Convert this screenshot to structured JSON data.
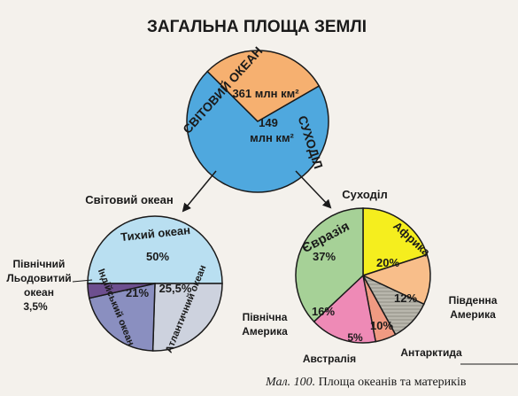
{
  "title": "ЗАГАЛЬНА ПЛОЩА ЗЕМЛІ",
  "caption": {
    "prefix": "Мал. 100.",
    "text": "Площа океанів та материків"
  },
  "chart_data": [
    {
      "type": "pie",
      "title": "ЗАГАЛЬНА ПЛОЩА ЗЕМЛІ",
      "slices": [
        {
          "label": "СВІТОВИЙ ОКЕАН",
          "value": 361,
          "value_label": "361 млн км²",
          "color": "#4fa8de"
        },
        {
          "label": "СУХОДІЛ",
          "value": 149,
          "value_label_line1": "149",
          "value_label_line2": "млн км²",
          "color": "#f6b070"
        }
      ]
    },
    {
      "type": "pie",
      "title": "Світовий океан",
      "slices": [
        {
          "label": "Тихий океан",
          "value": 50,
          "value_label": "50%",
          "color": "#b9dff1"
        },
        {
          "label": "Атлантичний океан",
          "value": 25.5,
          "value_label": "25,5%",
          "color": "#cdd2de"
        },
        {
          "label": "Індійський океан",
          "value": 21,
          "value_label": "21%",
          "color": "#8a8fc0"
        },
        {
          "label_line1": "Північний",
          "label_line2": "Льодовитий",
          "label_line3": "океан",
          "value": 3.5,
          "value_label": "3,5%",
          "color": "#6d4f8f"
        }
      ]
    },
    {
      "type": "pie",
      "title": "Суходіл",
      "slices": [
        {
          "label": "Африка",
          "value": 20,
          "value_label": "20%",
          "color": "#f5ee1e"
        },
        {
          "label_line1": "Південна",
          "label_line2": "Америка",
          "value": 12,
          "value_label": "12%",
          "color": "#f8be8a"
        },
        {
          "label": "Антарктида",
          "value": 10,
          "value_label": "10%",
          "color": "#b9b7ad"
        },
        {
          "label": "Австралія",
          "value": 5,
          "value_label": "5%",
          "color": "#f09a82"
        },
        {
          "label_line1": "Північна",
          "label_line2": "Америка",
          "value": 16,
          "value_label": "16%",
          "color": "#ee8ab6"
        },
        {
          "label": "Євразія",
          "value": 37,
          "value_label": "37%",
          "color": "#a6d197"
        }
      ]
    }
  ]
}
